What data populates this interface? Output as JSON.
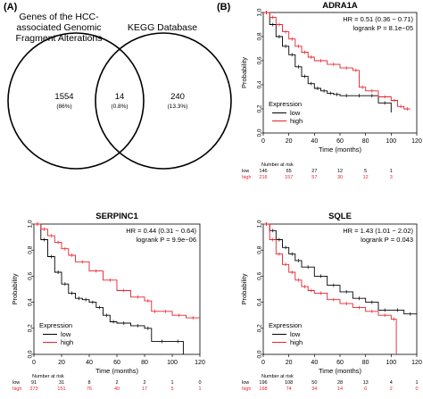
{
  "panel_labels": {
    "a": "(A)",
    "b": "(B)"
  },
  "venn": {
    "left_label_lines": [
      "Genes of the HCC-",
      "associated Genomic",
      "Fragment Alterations"
    ],
    "right_label": "KEGG Database",
    "left_only": {
      "count": "1554",
      "pct": "(86%)"
    },
    "intersection": {
      "count": "14",
      "pct": "(0.8%)"
    },
    "right_only": {
      "count": "240",
      "pct": "(13.3%)"
    }
  },
  "chart_data": [
    {
      "type": "line",
      "title": "ADRA1A",
      "xlabel": "Time (months)",
      "ylabel": "Probability",
      "xlim": [
        0,
        120
      ],
      "ylim": [
        0,
        1
      ],
      "xticks": [
        "0",
        "20",
        "40",
        "60",
        "80",
        "100",
        "120"
      ],
      "yticks": [
        "0.0",
        "0.2",
        "0.4",
        "0.6",
        "0.8",
        "1.0"
      ],
      "stats": [
        "HR = 0.51 (0.36 − 0.71)",
        "logrank P = 8.1e−05"
      ],
      "legend_title": "Expression",
      "legend_position": "bottom-left",
      "risk_header": "Number at risk",
      "risk_times": [
        0,
        20,
        40,
        60,
        80,
        100
      ],
      "series": [
        {
          "name": "low",
          "color": "#000000",
          "x": [
            0,
            5,
            10,
            15,
            20,
            25,
            30,
            35,
            40,
            45,
            50,
            55,
            60,
            70,
            80,
            90,
            100
          ],
          "y": [
            1.0,
            0.9,
            0.8,
            0.72,
            0.65,
            0.55,
            0.47,
            0.41,
            0.37,
            0.35,
            0.33,
            0.32,
            0.31,
            0.31,
            0.31,
            0.25,
            0.17
          ],
          "risk": [
            "146",
            "65",
            "27",
            "12",
            "5",
            "1"
          ]
        },
        {
          "name": "high",
          "color": "#e8212c",
          "x": [
            0,
            5,
            10,
            15,
            20,
            25,
            30,
            35,
            40,
            50,
            60,
            70,
            75,
            80,
            90,
            100,
            105,
            110,
            115
          ],
          "y": [
            1.0,
            0.96,
            0.9,
            0.84,
            0.78,
            0.72,
            0.67,
            0.63,
            0.6,
            0.57,
            0.54,
            0.52,
            0.38,
            0.35,
            0.3,
            0.27,
            0.22,
            0.2,
            0.2
          ],
          "risk": [
            "216",
            "157",
            "57",
            "30",
            "12",
            "3"
          ]
        }
      ]
    },
    {
      "type": "line",
      "title": "SERPINC1",
      "xlabel": "Time (months)",
      "ylabel": "Probability",
      "xlim": [
        0,
        120
      ],
      "ylim": [
        0,
        1
      ],
      "xticks": [
        "0",
        "20",
        "40",
        "60",
        "80",
        "100",
        "120"
      ],
      "yticks": [
        "0.0",
        "0.2",
        "0.4",
        "0.6",
        "0.8",
        "1.0"
      ],
      "stats": [
        "HR = 0.44 (0.31 − 0.64)",
        "logrank P = 9.9e−06"
      ],
      "legend_title": "Expression",
      "legend_position": "bottom-left",
      "risk_header": "Number at risk",
      "risk_times": [
        0,
        20,
        40,
        60,
        80,
        100,
        120
      ],
      "series": [
        {
          "name": "low",
          "color": "#000000",
          "x": [
            0,
            5,
            10,
            15,
            20,
            25,
            30,
            35,
            40,
            45,
            50,
            55,
            60,
            70,
            80,
            85,
            100,
            108
          ],
          "y": [
            1.0,
            0.88,
            0.75,
            0.63,
            0.54,
            0.47,
            0.43,
            0.42,
            0.4,
            0.36,
            0.3,
            0.25,
            0.24,
            0.22,
            0.2,
            0.1,
            0.1,
            0.0
          ],
          "risk": [
            "91",
            "31",
            "8",
            "2",
            "2",
            "1",
            "0"
          ]
        },
        {
          "name": "high",
          "color": "#e8212c",
          "x": [
            0,
            5,
            10,
            15,
            20,
            25,
            30,
            40,
            50,
            60,
            70,
            80,
            85,
            90,
            100,
            110,
            120
          ],
          "y": [
            1.0,
            0.96,
            0.91,
            0.86,
            0.81,
            0.76,
            0.71,
            0.64,
            0.57,
            0.49,
            0.44,
            0.41,
            0.33,
            0.33,
            0.3,
            0.28,
            0.28
          ],
          "risk": [
            "273",
            "151",
            "76",
            "40",
            "17",
            "5",
            "1"
          ]
        }
      ]
    },
    {
      "type": "line",
      "title": "SQLE",
      "xlabel": "Time (months)",
      "ylabel": "Probability",
      "xlim": [
        0,
        120
      ],
      "ylim": [
        0,
        1
      ],
      "xticks": [
        "0",
        "20",
        "40",
        "60",
        "80",
        "100",
        "120"
      ],
      "yticks": [
        "0.0",
        "0.2",
        "0.4",
        "0.6",
        "0.8",
        "1.0"
      ],
      "stats": [
        "HR = 1.43 (1.01 − 2.02)",
        "logrank P = 0.043"
      ],
      "legend_title": "Expression",
      "legend_position": "bottom-left",
      "risk_header": "Number at risk",
      "risk_times": [
        0,
        20,
        40,
        60,
        80,
        100,
        120
      ],
      "series": [
        {
          "name": "low",
          "color": "#000000",
          "x": [
            0,
            5,
            10,
            15,
            20,
            25,
            30,
            40,
            50,
            60,
            70,
            80,
            90,
            100,
            110,
            120
          ],
          "y": [
            1.0,
            0.95,
            0.88,
            0.82,
            0.77,
            0.72,
            0.67,
            0.6,
            0.53,
            0.48,
            0.43,
            0.4,
            0.34,
            0.34,
            0.31,
            0.31
          ],
          "risk": [
            "196",
            "108",
            "50",
            "28",
            "13",
            "4",
            "1"
          ]
        },
        {
          "name": "high",
          "color": "#e8212c",
          "x": [
            0,
            5,
            10,
            15,
            20,
            25,
            30,
            35,
            40,
            50,
            60,
            70,
            80,
            90,
            100,
            104
          ],
          "y": [
            1.0,
            0.88,
            0.77,
            0.69,
            0.63,
            0.57,
            0.52,
            0.49,
            0.47,
            0.42,
            0.39,
            0.36,
            0.33,
            0.3,
            0.27,
            0.0
          ],
          "risk": [
            "168",
            "74",
            "34",
            "14",
            "6",
            "2",
            "0"
          ]
        }
      ]
    }
  ]
}
